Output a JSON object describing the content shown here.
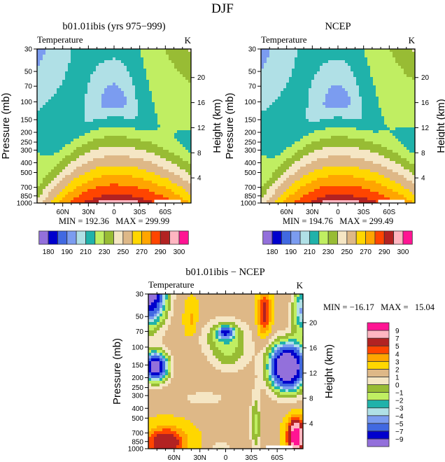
{
  "figure_title": "DJF",
  "chart_data": [
    {
      "type": "heatmap",
      "title": "b01.01ibis (yrs 975−999)",
      "left_string": "Temperature",
      "right_string": "K",
      "ylabel": "Pressure (mb)",
      "y2label": "Height (km)",
      "yscale": "log",
      "ylim": [
        1000,
        30
      ],
      "y_ticks": [
        "30",
        "50",
        "70",
        "100",
        "150",
        "200",
        "250",
        "300",
        "400",
        "500",
        "700",
        "850",
        "1000"
      ],
      "y2_ticks": [
        "4",
        "8",
        "12",
        "16",
        "20"
      ],
      "x_ticks": [
        "60N",
        "30N",
        "0",
        "30S",
        "60S"
      ],
      "min_max": "MIN = 192.36   MAX = 299.99",
      "levels": [
        180,
        185,
        190,
        200,
        210,
        220,
        230,
        240,
        250,
        260,
        270,
        280,
        290,
        295,
        300
      ],
      "colorbar_labels": [
        "180",
        "",
        "190",
        "",
        "210",
        "",
        "230",
        "",
        "250",
        "",
        "270",
        "",
        "290",
        "",
        "300"
      ],
      "colors": [
        "#9370db",
        "#0000cd",
        "#4169e1",
        "#7b9cf0",
        "#b0e0e6",
        "#20b2aa",
        "#c0ee62",
        "#98bc34",
        "#f5e6c4",
        "#deb887",
        "#ffd700",
        "#ffa500",
        "#ff4500",
        "#b22222",
        "#ffb6c1",
        "#ff1493"
      ]
    },
    {
      "type": "heatmap",
      "title": "NCEP",
      "left_string": "Temperature",
      "right_string": "K",
      "ylabel": "Pressure (mb)",
      "y2label": "Height (km)",
      "yscale": "log",
      "ylim": [
        1000,
        30
      ],
      "y_ticks": [
        "30",
        "50",
        "70",
        "100",
        "150",
        "200",
        "250",
        "300",
        "400",
        "500",
        "700",
        "850",
        "1000"
      ],
      "y2_ticks": [
        "4",
        "8",
        "12",
        "16",
        "20"
      ],
      "x_ticks": [
        "60N",
        "30N",
        "0",
        "30S",
        "60S"
      ],
      "min_max": "MIN = 194.76   MAX = 299.49",
      "levels": [
        180,
        185,
        190,
        200,
        210,
        220,
        230,
        240,
        250,
        260,
        270,
        280,
        290,
        295,
        300
      ],
      "colorbar_labels": [
        "180",
        "",
        "190",
        "",
        "210",
        "",
        "230",
        "",
        "250",
        "",
        "270",
        "",
        "290",
        "",
        "300"
      ],
      "colors": [
        "#9370db",
        "#0000cd",
        "#4169e1",
        "#7b9cf0",
        "#b0e0e6",
        "#20b2aa",
        "#c0ee62",
        "#98bc34",
        "#f5e6c4",
        "#deb887",
        "#ffd700",
        "#ffa500",
        "#ff4500",
        "#b22222",
        "#ffb6c1",
        "#ff1493"
      ]
    },
    {
      "type": "heatmap",
      "title": "b01.01ibis − NCEP",
      "left_string": "Temperature",
      "right_string": "K",
      "ylabel": "Pressure (mb)",
      "y2label": "Height (km)",
      "yscale": "log",
      "ylim": [
        1000,
        30
      ],
      "y_ticks": [
        "30",
        "50",
        "70",
        "100",
        "150",
        "200",
        "250",
        "300",
        "400",
        "500",
        "700",
        "850",
        "1000"
      ],
      "y2_ticks": [
        "4",
        "8",
        "12",
        "16",
        "20"
      ],
      "x_ticks": [
        "60N",
        "30N",
        "0",
        "30S",
        "60S"
      ],
      "min_max": "MIN = −16.17   MAX =   15.04",
      "levels": [
        -9,
        -7,
        -5,
        -4,
        -3,
        -2,
        -1,
        0,
        1,
        2,
        3,
        4,
        5,
        7,
        9
      ],
      "colorbar_labels": [
        "−9",
        "−7",
        "−5",
        "−4",
        "−3",
        "−2",
        "−1",
        "0",
        "1",
        "2",
        "3",
        "4",
        "5",
        "7",
        "9"
      ],
      "colors": [
        "#9370db",
        "#0000cd",
        "#4169e1",
        "#7b9cf0",
        "#b0e0e6",
        "#20b2aa",
        "#c0ee62",
        "#98bc34",
        "#f5e6c4",
        "#deb887",
        "#ffd700",
        "#ffa500",
        "#ff4500",
        "#b22222",
        "#ffb6c1",
        "#ff1493"
      ]
    }
  ]
}
